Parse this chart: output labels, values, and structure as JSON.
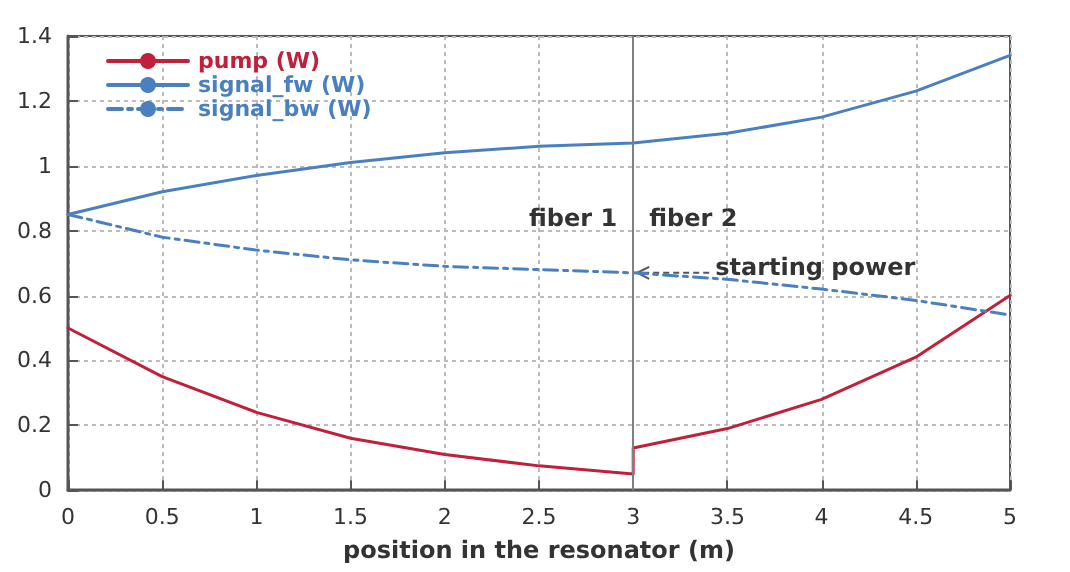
{
  "chart_data": {
    "type": "line",
    "xlabel": "position in the resonator (m)",
    "xlim": [
      0,
      5
    ],
    "xticks": [
      0,
      0.5,
      1,
      1.5,
      2,
      2.5,
      3,
      3.5,
      4,
      4.5,
      5
    ],
    "ylim": [
      0,
      1.4
    ],
    "yticks": [
      0,
      0.2,
      0.4,
      0.6,
      0.8,
      1,
      1.2,
      1.4
    ],
    "grid": true,
    "legend": "top left",
    "marker": "none",
    "series": [
      {
        "name": "pump (W)",
        "color": "#c0203a",
        "line_style": "solid",
        "x": [
          0,
          0.5,
          1,
          1.5,
          2,
          2.5,
          3,
          3,
          3.5,
          4,
          4.5,
          5
        ],
        "values": [
          0.5,
          0.35,
          0.24,
          0.16,
          0.11,
          0.075,
          0.05,
          0.13,
          0.19,
          0.28,
          0.41,
          0.6
        ]
      },
      {
        "name": "signal_fw (W)",
        "color": "#4a80c0",
        "line_style": "solid",
        "x": [
          0,
          0.5,
          1,
          1.5,
          2,
          2.5,
          3,
          3.5,
          4,
          4.5,
          5
        ],
        "values": [
          0.85,
          0.92,
          0.97,
          1.01,
          1.04,
          1.06,
          1.07,
          1.1,
          1.15,
          1.23,
          1.34
        ]
      },
      {
        "name": "signal_bw (W)",
        "color": "#4a80c0",
        "line_style": "dashed",
        "x": [
          0,
          0.5,
          1,
          1.5,
          2,
          2.5,
          3,
          3.5,
          4,
          4.5,
          5
        ],
        "values": [
          0.85,
          0.78,
          0.74,
          0.71,
          0.69,
          0.68,
          0.67,
          0.65,
          0.62,
          0.585,
          0.54
        ]
      }
    ],
    "ref_lines": [
      {
        "axis": "x",
        "value": 3,
        "color": "#808080"
      }
    ],
    "annotations": [
      "fiber 1",
      "fiber 2",
      {
        "text": "starting power",
        "x": 3,
        "y": 0.67
      }
    ]
  }
}
